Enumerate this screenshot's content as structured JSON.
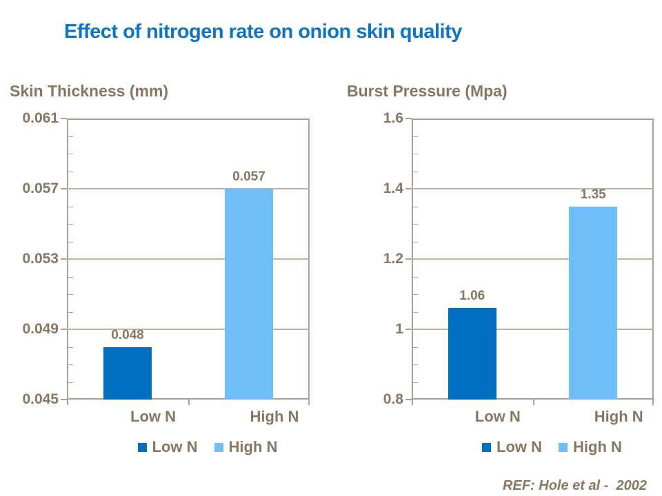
{
  "title": "Effect of nitrogen rate on onion skin quality",
  "footer": {
    "ref": "REF: Hole et al -  2002"
  },
  "colors": {
    "title_blue": "#0D74C7",
    "bar_dark_blue": "#0070C0",
    "bar_light_blue": "#6FBEF8",
    "text_brown": "#8A7660",
    "gridline": "#BFB3A6",
    "axis": "#AEA193"
  },
  "chart_data": [
    {
      "type": "bar",
      "title": "Skin Thickness (mm)",
      "categories": [
        "Low N",
        "High N"
      ],
      "values": [
        0.048,
        0.057
      ],
      "value_labels": [
        "0.048",
        "0.057"
      ],
      "series_colors": [
        "#0070C0",
        "#6FBEF8"
      ],
      "ylim": [
        0.045,
        0.061
      ],
      "yticks": [
        "0.045",
        "0.049",
        "0.053",
        "0.057",
        "0.061"
      ],
      "minor_tick": 0.001,
      "grid": true,
      "legend": [
        "Low N",
        "High N"
      ],
      "legend_position": "bottom"
    },
    {
      "type": "bar",
      "title": "Burst Pressure (Mpa)",
      "categories": [
        "Low N",
        "High N"
      ],
      "values": [
        1.06,
        1.35
      ],
      "value_labels": [
        "1.06",
        "1.35"
      ],
      "series_colors": [
        "#0070C0",
        "#6FBEF8"
      ],
      "ylim": [
        0.8,
        1.6
      ],
      "yticks": [
        "0.8",
        "1",
        "1.2",
        "1.4",
        "1.6"
      ],
      "minor_tick": 0.05,
      "grid": true,
      "legend": [
        "Low N",
        "High N"
      ],
      "legend_position": "bottom"
    }
  ]
}
